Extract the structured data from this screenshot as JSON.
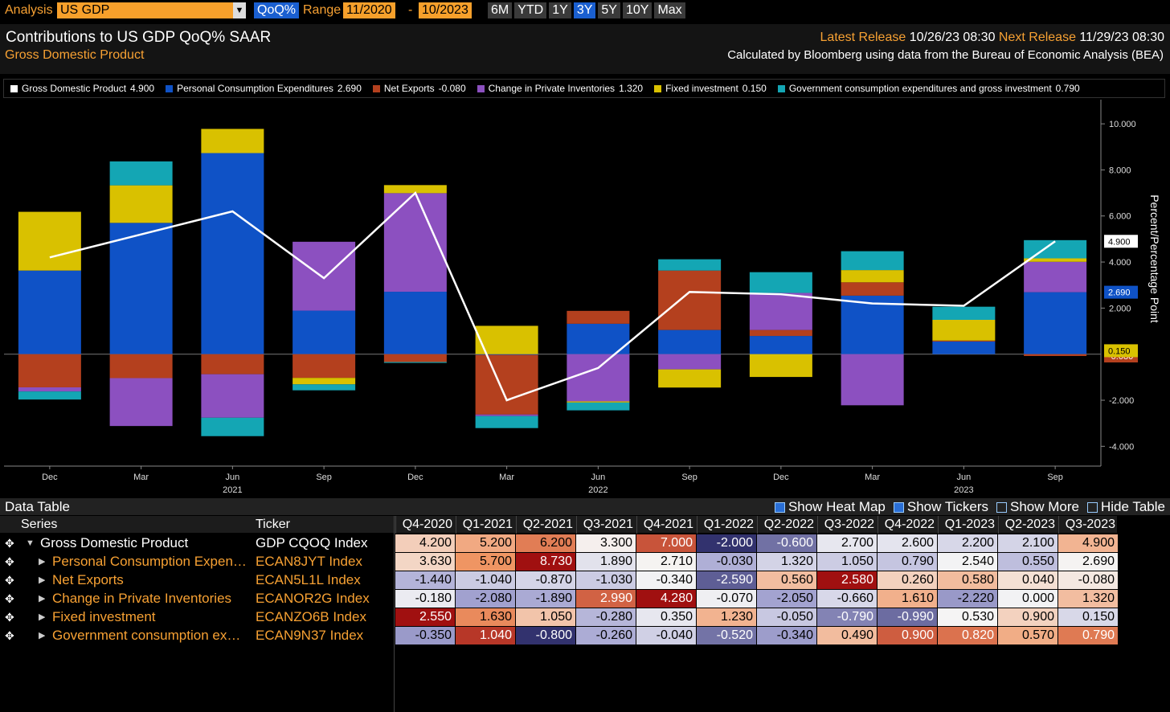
{
  "toolbar": {
    "analysis_label": "Analysis",
    "analysis_value": "US GDP",
    "mode": "QoQ%",
    "range_label": "Range",
    "range_start": "11/2020",
    "range_sep": "-",
    "range_end": "10/2023",
    "buttons": [
      "6M",
      "YTD",
      "1Y",
      "3Y",
      "5Y",
      "10Y",
      "Max"
    ],
    "active_button": "3Y"
  },
  "header": {
    "subtitle": "Gross Domestic Product",
    "latest_label": "Latest Release",
    "latest_value": "10/26/23 08:30",
    "next_label": "Next Release",
    "next_value": "11/29/23 08:30",
    "source": "Calculated by Bloomberg using data from the Bureau of Economic Analysis (BEA)"
  },
  "chart_data": {
    "type": "bar",
    "stacked": true,
    "title": "Contributions to US GDP QoQ% SAAR",
    "y_axis_label": "Percent/Percentage Point",
    "categories": [
      "Dec",
      "Mar",
      "Jun",
      "Sep",
      "Dec",
      "Mar",
      "Jun",
      "Sep",
      "Dec",
      "Mar",
      "Jun",
      "Sep"
    ],
    "year_labels": [
      null,
      null,
      "2021",
      null,
      null,
      null,
      "2022",
      null,
      null,
      null,
      "2023",
      null
    ],
    "ylim": [
      -4.86,
      11.05
    ],
    "yticks": [
      {
        "value": -4,
        "label": "-4.000"
      },
      {
        "value": -2,
        "label": "-2.000"
      },
      {
        "value": 2,
        "label": "2.000"
      },
      {
        "value": 4,
        "label": "4.000"
      },
      {
        "value": 6,
        "label": "6.000"
      },
      {
        "value": 8,
        "label": "8.000"
      },
      {
        "value": 10,
        "label": "10.000"
      }
    ],
    "grid": false,
    "series": [
      {
        "name": "Gross Domestic Product",
        "type": "line",
        "color": "#ffffff",
        "badge": true,
        "values": [
          4.2,
          5.2,
          6.2,
          3.3,
          7.0,
          -2.0,
          -0.6,
          2.7,
          2.6,
          2.2,
          2.1,
          4.9
        ],
        "value_labels": [
          "4.200",
          "5.200",
          "6.200",
          "3.300",
          "7.000",
          "-2.000",
          "-0.600",
          "2.700",
          "2.600",
          "2.200",
          "2.100",
          "4.900"
        ]
      },
      {
        "name": "Personal Consumption Expenditures",
        "type": "bar",
        "color": "#0f52c6",
        "badge": true,
        "values": [
          3.63,
          5.7,
          8.73,
          1.89,
          2.71,
          -0.03,
          1.32,
          1.05,
          0.79,
          2.54,
          0.55,
          2.69
        ],
        "value_labels": [
          "3.630",
          "5.700",
          "8.730",
          "1.890",
          "2.710",
          "-0.030",
          "1.320",
          "1.050",
          "0.790",
          "2.540",
          "0.550",
          "2.690"
        ]
      },
      {
        "name": "Net Exports",
        "type": "bar",
        "color": "#b4401e",
        "badge": true,
        "values": [
          -1.44,
          -1.04,
          -0.87,
          -1.03,
          -0.34,
          -2.59,
          0.56,
          2.58,
          0.26,
          0.58,
          0.04,
          -0.08
        ],
        "value_labels": [
          "-1.440",
          "-1.040",
          "-0.870",
          "-1.030",
          "-0.340",
          "-2.590",
          "0.560",
          "2.580",
          "0.260",
          "0.580",
          "0.040",
          "-0.080"
        ]
      },
      {
        "name": "Change in Private Inventories",
        "type": "bar",
        "color": "#8c50c0",
        "badge": false,
        "values": [
          -0.18,
          -2.08,
          -1.89,
          2.99,
          4.28,
          -0.07,
          -2.05,
          -0.66,
          1.61,
          -2.22,
          0.0,
          1.32
        ],
        "value_labels": [
          "-0.180",
          "-2.080",
          "-1.890",
          "2.990",
          "4.280",
          "-0.070",
          "-2.050",
          "-0.660",
          "1.610",
          "-2.220",
          "0.000",
          "1.320"
        ]
      },
      {
        "name": "Fixed investment",
        "type": "bar",
        "color": "#d9c100",
        "badge": true,
        "values": [
          2.55,
          1.63,
          1.05,
          -0.28,
          0.35,
          1.23,
          -0.05,
          -0.79,
          -0.99,
          0.53,
          0.9,
          0.15
        ],
        "value_labels": [
          "2.550",
          "1.630",
          "1.050",
          "-0.280",
          "0.350",
          "1.230",
          "-0.050",
          "-0.790",
          "-0.990",
          "0.530",
          "0.900",
          "0.150"
        ]
      },
      {
        "name": "Government consumption expenditures and gross investment",
        "type": "bar",
        "color": "#14a6b4",
        "badge": false,
        "values": [
          -0.35,
          1.04,
          -0.8,
          -0.26,
          -0.04,
          -0.52,
          -0.34,
          0.49,
          0.9,
          0.82,
          0.57,
          0.79
        ],
        "value_labels": [
          "-0.350",
          "1.040",
          "-0.800",
          "-0.260",
          "-0.040",
          "-0.520",
          "-0.340",
          "0.490",
          "0.900",
          "0.820",
          "0.570",
          "0.790"
        ]
      }
    ]
  },
  "table": {
    "title": "Data Table",
    "controls": [
      "Show Heat Map",
      "Show Tickers",
      "Show More",
      "Hide Table"
    ],
    "series_header": "Series",
    "ticker_header": "Ticker",
    "columns": [
      "Q4-2020",
      "Q1-2021",
      "Q2-2021",
      "Q3-2021",
      "Q4-2021",
      "Q1-2022",
      "Q2-2022",
      "Q3-2022",
      "Q4-2022",
      "Q1-2023",
      "Q2-2023",
      "Q3-2023"
    ],
    "row_labels": [
      "Gross Domestic Product",
      "Personal Consumption Expen…",
      "Net Exports",
      "Change in Private Inventories",
      "Fixed investment",
      "Government consumption ex…"
    ],
    "tickers": [
      "GDP CQOQ Index",
      "ECAN8JYT Index",
      "ECAN5L1L Index",
      "ECANOR2G Index",
      "ECANZO6B Index",
      "ECAN9N37 Index"
    ]
  }
}
